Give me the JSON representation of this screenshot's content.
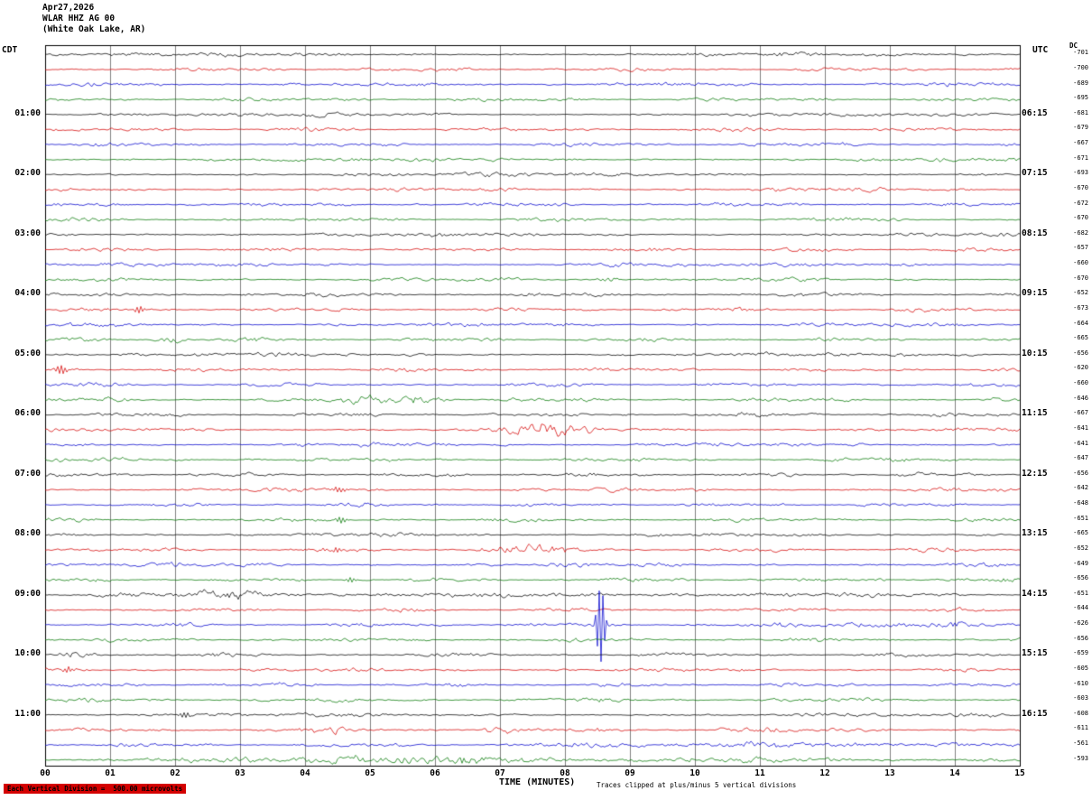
{
  "header": {
    "date": "Apr27,2026",
    "station": "WLAR HHZ AG 00",
    "location": "(White Oak Lake, AR)"
  },
  "axes": {
    "left_tz": "CDT",
    "right_tz": "UTC",
    "xlabel": "TIME (MINUTES)",
    "dc_header": "DC",
    "minute_labels": [
      "00",
      "01",
      "02",
      "03",
      "04",
      "05",
      "06",
      "07",
      "08",
      "09",
      "10",
      "11",
      "12",
      "13",
      "14",
      "15"
    ],
    "left_times": [
      "01:00",
      "02:00",
      "03:00",
      "04:00",
      "05:00",
      "06:00",
      "07:00",
      "08:00",
      "09:00",
      "10:00",
      "11:00"
    ],
    "right_times": [
      "06:15",
      "07:15",
      "08:15",
      "09:15",
      "10:15",
      "11:15",
      "12:15",
      "13:15",
      "14:15",
      "15:15",
      "16:15"
    ],
    "dc_values": [
      "-701",
      "-700",
      "-689",
      "-695",
      "-681",
      "-679",
      "-667",
      "-671",
      "-693",
      "-670",
      "-672",
      "-670",
      "-682",
      "-657",
      "-660",
      "-670",
      "-652",
      "-673",
      "-664",
      "-665",
      "-656",
      "-620",
      "-660",
      "-646",
      "-667",
      "-641",
      "-641",
      "-647",
      "-656",
      "-642",
      "-648",
      "-651",
      "-665",
      "-652",
      "-649",
      "-656",
      "-651",
      "-644",
      "-626",
      "-656",
      "-659",
      "-605",
      "-610",
      "-603",
      "-608",
      "-611",
      "-561",
      "-593"
    ]
  },
  "footer": {
    "scale_note": "Each Vertical Division =  500.00 microvolts",
    "clip_note": "Traces clipped at plus/minus 5 vertical divisions"
  },
  "chart_data": {
    "type": "line",
    "kind": "helicorder-seismogram",
    "rows": 48,
    "minutes_per_line": 15,
    "x_range": [
      0,
      15
    ],
    "start_time_cdt": "00:00",
    "microvolts_per_division": 500.0,
    "clip_divisions": 5,
    "colors_cycle": [
      "#000000",
      "#d40000",
      "#0000cc",
      "#007700"
    ],
    "noise_base_amp": 1.5,
    "seed": 427,
    "events": [
      {
        "row": 14,
        "x0": 8.3,
        "x1": 9.2,
        "amp": 2.2
      },
      {
        "row": 15,
        "x0": 8.3,
        "x1": 8.9,
        "amp": 2.4
      },
      {
        "row": 17,
        "type": "spike",
        "x": 1.45,
        "w": 0.12,
        "amp": 4
      },
      {
        "row": 19,
        "x0": 1.6,
        "x1": 2.3,
        "amp": 2.8
      },
      {
        "row": 21,
        "type": "spike",
        "x": 0.25,
        "w": 0.12,
        "amp": 5
      },
      {
        "row": 23,
        "x0": 4.4,
        "x1": 6.4,
        "amp": 3.2
      },
      {
        "row": 25,
        "x0": 6.9,
        "x1": 8.7,
        "amp": 3.6
      },
      {
        "row": 29,
        "type": "spike",
        "x": 4.5,
        "w": 0.15,
        "amp": 3
      },
      {
        "row": 31,
        "type": "spike",
        "x": 4.55,
        "w": 0.12,
        "amp": 3.5
      },
      {
        "row": 33,
        "x0": 6.6,
        "x1": 8.4,
        "amp": 2.8
      },
      {
        "row": 33,
        "type": "spike",
        "x": 4.5,
        "w": 0.1,
        "amp": 2.5
      },
      {
        "row": 35,
        "type": "spike",
        "x": 4.7,
        "w": 0.1,
        "amp": 3
      },
      {
        "row": 36,
        "x0": 2.2,
        "x1": 3.7,
        "amp": 2.2
      },
      {
        "row": 36,
        "x0": 0.2,
        "x1": 15,
        "amp": 0.7
      },
      {
        "row": 38,
        "type": "spike",
        "x": 8.55,
        "w": 0.1,
        "amp": 48
      },
      {
        "row": 38,
        "x0": 11.3,
        "x1": 14.6,
        "amp": 1.6
      },
      {
        "row": 40,
        "x0": 0.05,
        "x1": 0.9,
        "amp": 2.4
      },
      {
        "row": 41,
        "type": "spike",
        "x": 0.35,
        "w": 0.15,
        "amp": 3
      },
      {
        "row": 44,
        "type": "spike",
        "x": 2.15,
        "w": 0.1,
        "amp": 4
      },
      {
        "row": 45,
        "x0": 3.7,
        "x1": 4.8,
        "amp": 2.8
      },
      {
        "row": 45,
        "x0": 6.6,
        "x1": 7.4,
        "amp": 2.2
      },
      {
        "row": 45,
        "x0": 10.2,
        "x1": 11.4,
        "amp": 1.8
      },
      {
        "row": 46,
        "x0": 6.8,
        "x1": 14.9,
        "amp": 1.4
      },
      {
        "row": 47,
        "x0": 0.1,
        "x1": 14.9,
        "amp": 1.0
      },
      {
        "row": 47,
        "x0": 3.4,
        "x1": 7.2,
        "amp": 2.0
      }
    ]
  }
}
